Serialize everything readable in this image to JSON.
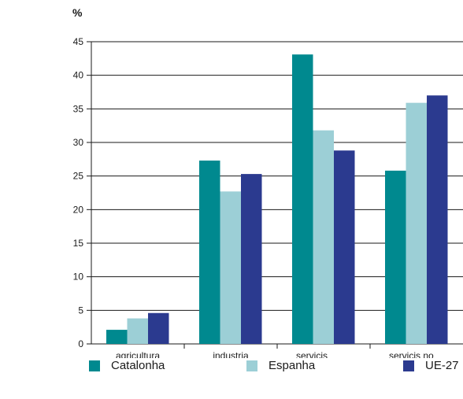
{
  "chart_data": {
    "type": "bar",
    "unit_label": "%",
    "categories": [
      "agricultura",
      "industria",
      "servicis\nvenda",
      "servicis no\nvenda"
    ],
    "series": [
      {
        "name": "Catalonha",
        "color": "#00898f",
        "values": [
          2.1,
          27.3,
          43.1,
          25.8
        ]
      },
      {
        "name": "Espanha",
        "color": "#9ccfd6",
        "values": [
          3.8,
          22.7,
          31.8,
          35.9
        ]
      },
      {
        "name": "UE-27",
        "color": "#2b3a8f",
        "values": [
          4.6,
          25.3,
          28.8,
          37.0
        ]
      }
    ],
    "ylim": [
      0,
      45
    ],
    "yticks": [
      0,
      5,
      10,
      15,
      20,
      25,
      30,
      35,
      40,
      45
    ],
    "grid": true,
    "legend_position": "bottom"
  }
}
